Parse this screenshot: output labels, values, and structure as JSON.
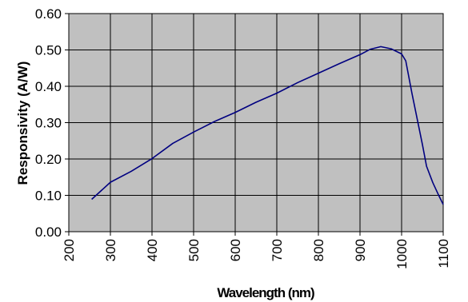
{
  "chart_data": {
    "type": "line",
    "xlabel": "Wavelength (nm)",
    "ylabel": "Responsivity (A/W)",
    "xlim": [
      200,
      1100
    ],
    "ylim": [
      0,
      0.6
    ],
    "x_ticks": [
      "200",
      "300",
      "400",
      "500",
      "600",
      "700",
      "800",
      "900",
      "1000",
      "1100"
    ],
    "y_ticks": [
      "0.00",
      "0.10",
      "0.20",
      "0.30",
      "0.40",
      "0.50",
      "0.60"
    ],
    "grid": true,
    "legend": "none",
    "plot_background": "#c0c0c0",
    "line_color": "#000080",
    "series": [
      {
        "x": [
          255,
          300,
          350,
          400,
          450,
          500,
          550,
          600,
          650,
          700,
          750,
          800,
          850,
          900,
          925,
          950,
          975,
          1000,
          1010,
          1025,
          1050,
          1060,
          1075,
          1090,
          1100
        ],
        "y": [
          0.089,
          0.136,
          0.166,
          0.201,
          0.243,
          0.274,
          0.303,
          0.328,
          0.356,
          0.381,
          0.41,
          0.436,
          0.462,
          0.487,
          0.502,
          0.509,
          0.503,
          0.489,
          0.47,
          0.38,
          0.24,
          0.18,
          0.135,
          0.098,
          0.075
        ]
      }
    ]
  }
}
